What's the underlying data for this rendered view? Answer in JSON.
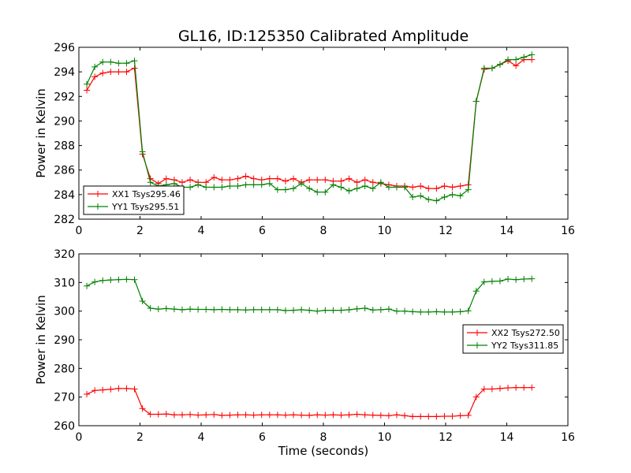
{
  "chart_data": [
    {
      "type": "line",
      "title": "GL16, ID:125350 Calibrated Amplitude",
      "xlabel": "",
      "ylabel": "Power in Kelvin",
      "xlim": [
        0,
        16
      ],
      "ylim": [
        282,
        296
      ],
      "xticks": [
        "0",
        "2",
        "4",
        "6",
        "8",
        "10",
        "12",
        "14",
        "16"
      ],
      "yticks": [
        "282",
        "284",
        "286",
        "288",
        "290",
        "292",
        "294",
        "296"
      ],
      "legend_position": "lower-left",
      "grid": false,
      "x": [
        0.26,
        0.52,
        0.78,
        1.04,
        1.3,
        1.56,
        1.82,
        2.08,
        2.34,
        2.6,
        2.86,
        3.12,
        3.38,
        3.64,
        3.9,
        4.16,
        4.42,
        4.68,
        4.94,
        5.2,
        5.46,
        5.72,
        5.98,
        6.24,
        6.5,
        6.76,
        7.02,
        7.28,
        7.54,
        7.8,
        8.06,
        8.32,
        8.58,
        8.84,
        9.1,
        9.36,
        9.62,
        9.88,
        10.14,
        10.4,
        10.66,
        10.92,
        11.18,
        11.44,
        11.7,
        11.96,
        12.22,
        12.48,
        12.74,
        13.0,
        13.26,
        13.52,
        13.78,
        14.04,
        14.3,
        14.56,
        14.82
      ],
      "series": [
        {
          "name": "XX1 Tsys295.46",
          "color": "#ff0000",
          "values": [
            292.5,
            293.6,
            293.9,
            294.0,
            294.0,
            294.0,
            294.3,
            287.3,
            285.3,
            284.9,
            285.3,
            285.2,
            285.0,
            285.2,
            285.0,
            285.0,
            285.4,
            285.2,
            285.2,
            285.3,
            285.5,
            285.3,
            285.2,
            285.3,
            285.3,
            285.1,
            285.3,
            285.0,
            285.2,
            285.2,
            285.2,
            285.1,
            285.1,
            285.3,
            285.0,
            285.2,
            285.0,
            284.9,
            284.8,
            284.7,
            284.7,
            284.6,
            284.7,
            284.5,
            284.5,
            284.7,
            284.6,
            284.7,
            284.8,
            291.6,
            294.2,
            294.3,
            294.6,
            294.9,
            294.5,
            295.0,
            295.0
          ]
        },
        {
          "name": "YY1 Tsys295.51",
          "color": "#008000",
          "values": [
            293.0,
            294.4,
            294.8,
            294.8,
            294.7,
            294.7,
            294.9,
            287.5,
            285.0,
            284.7,
            284.8,
            284.9,
            284.6,
            284.6,
            284.8,
            284.6,
            284.6,
            284.6,
            284.7,
            284.7,
            284.8,
            284.8,
            284.8,
            284.9,
            284.4,
            284.4,
            284.5,
            284.9,
            284.5,
            284.2,
            284.2,
            284.8,
            284.6,
            284.3,
            284.5,
            284.7,
            284.5,
            285.0,
            284.6,
            284.6,
            284.6,
            283.8,
            283.9,
            283.6,
            283.5,
            283.8,
            284.0,
            283.9,
            284.4,
            291.6,
            294.3,
            294.3,
            294.6,
            295.0,
            295.0,
            295.2,
            295.4
          ]
        }
      ]
    },
    {
      "type": "line",
      "title": "",
      "xlabel": "Time (seconds)",
      "ylabel": "Power in Kelvin",
      "xlim": [
        0,
        16
      ],
      "ylim": [
        260,
        320
      ],
      "xticks": [
        "0",
        "2",
        "4",
        "6",
        "8",
        "10",
        "12",
        "14",
        "16"
      ],
      "yticks": [
        "260",
        "270",
        "280",
        "290",
        "300",
        "310",
        "320"
      ],
      "legend_position": "right",
      "grid": false,
      "x": [
        0.26,
        0.52,
        0.78,
        1.04,
        1.3,
        1.56,
        1.82,
        2.08,
        2.34,
        2.6,
        2.86,
        3.12,
        3.38,
        3.64,
        3.9,
        4.16,
        4.42,
        4.68,
        4.94,
        5.2,
        5.46,
        5.72,
        5.98,
        6.24,
        6.5,
        6.76,
        7.02,
        7.28,
        7.54,
        7.8,
        8.06,
        8.32,
        8.58,
        8.84,
        9.1,
        9.36,
        9.62,
        9.88,
        10.14,
        10.4,
        10.66,
        10.92,
        11.18,
        11.44,
        11.7,
        11.96,
        12.22,
        12.48,
        12.74,
        13.0,
        13.26,
        13.52,
        13.78,
        14.04,
        14.3,
        14.56,
        14.82
      ],
      "series": [
        {
          "name": "XX2 Tsys272.50",
          "color": "#ff0000",
          "values": [
            271.0,
            272.3,
            272.5,
            272.7,
            273.0,
            273.0,
            272.8,
            266.0,
            264.0,
            264.0,
            264.1,
            263.8,
            263.8,
            263.9,
            263.7,
            263.8,
            263.9,
            263.6,
            263.7,
            263.8,
            263.8,
            263.7,
            263.8,
            263.8,
            263.8,
            263.7,
            263.8,
            263.7,
            263.6,
            263.8,
            263.7,
            263.8,
            263.7,
            263.8,
            264.0,
            263.8,
            263.7,
            263.6,
            263.5,
            263.8,
            263.5,
            263.2,
            263.2,
            263.2,
            263.2,
            263.3,
            263.3,
            263.5,
            263.6,
            270.0,
            272.8,
            272.8,
            273.0,
            273.2,
            273.3,
            273.3,
            273.3
          ]
        },
        {
          "name": "YY2 Tsys311.85",
          "color": "#008000",
          "values": [
            308.8,
            310.2,
            310.7,
            310.9,
            311.0,
            311.1,
            311.0,
            303.5,
            301.0,
            300.7,
            300.9,
            300.7,
            300.5,
            300.7,
            300.6,
            300.6,
            300.5,
            300.6,
            300.5,
            300.5,
            300.4,
            300.5,
            300.5,
            300.5,
            300.5,
            300.2,
            300.3,
            300.5,
            300.3,
            300.0,
            300.3,
            300.3,
            300.3,
            300.5,
            300.8,
            301.0,
            300.4,
            300.5,
            300.7,
            300.0,
            300.0,
            299.8,
            299.7,
            299.7,
            299.8,
            299.7,
            299.7,
            299.8,
            300.1,
            307.0,
            310.2,
            310.4,
            310.5,
            311.2,
            311.0,
            311.2,
            311.3
          ]
        }
      ]
    }
  ]
}
